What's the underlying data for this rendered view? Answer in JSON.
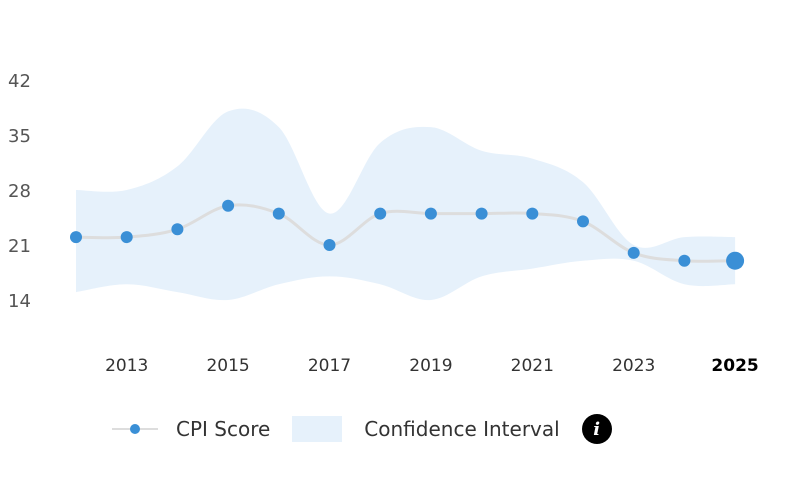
{
  "chart_data": {
    "type": "line",
    "title": "",
    "x": [
      2012,
      2013,
      2014,
      2015,
      2016,
      2017,
      2018,
      2019,
      2020,
      2021,
      2022,
      2023,
      2024,
      2025
    ],
    "x_tick_labels": [
      "2013",
      "2015",
      "2017",
      "2019",
      "2021",
      "2023",
      "2025"
    ],
    "y_tick_labels": [
      "14",
      "21",
      "28",
      "35",
      "42"
    ],
    "ylim": [
      14,
      42
    ],
    "series": [
      {
        "name": "CPI Score",
        "values": [
          22,
          22,
          23,
          26,
          25,
          21,
          25,
          25,
          25,
          25,
          24,
          20,
          19,
          19
        ]
      }
    ],
    "ci_upper": [
      28,
      28,
      31,
      38,
      36,
      25,
      34,
      36,
      33,
      32,
      29,
      21,
      22,
      22
    ],
    "ci_lower": [
      15,
      16,
      15,
      14,
      16,
      17,
      16,
      14,
      17,
      18,
      19,
      19,
      16,
      16
    ],
    "grid": false,
    "colors": {
      "point": "#3a8fd6",
      "line": "#dddddd",
      "band": "#e6f1fb"
    }
  },
  "legend": {
    "score_label": "CPI Score",
    "ci_label": "Confidence Interval",
    "info_icon": "i"
  }
}
